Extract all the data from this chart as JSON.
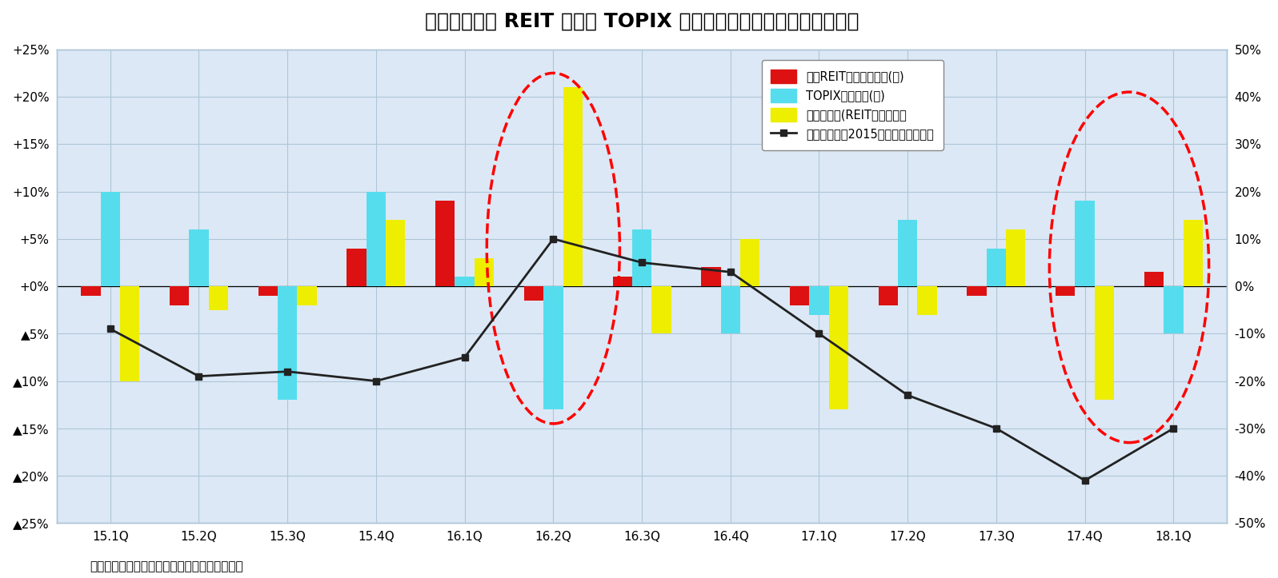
{
  "title": "図表１：東証 REIT 指数と TOPIX のリターン（四半期、配当除き）",
  "subtitle": "（資料）東京証券取引所のデータをもとに作成",
  "categories": [
    "15.1Q",
    "15.2Q",
    "15.3Q",
    "15.4Q",
    "16.1Q",
    "16.2Q",
    "16.3Q",
    "16.4Q",
    "17.1Q",
    "17.2Q",
    "17.3Q",
    "17.4Q",
    "18.1Q"
  ],
  "reit_returns": [
    -1.0,
    -2.0,
    -1.0,
    4.0,
    9.0,
    -1.5,
    1.0,
    2.0,
    -2.0,
    -2.0,
    -1.0,
    -1.0,
    1.5
  ],
  "topix_returns": [
    10.0,
    6.0,
    -12.0,
    10.0,
    1.0,
    -13.0,
    6.0,
    -5.0,
    -3.0,
    7.0,
    4.0,
    9.0,
    -5.0
  ],
  "diff_returns": [
    -10.0,
    -2.5,
    -2.0,
    7.0,
    3.0,
    21.0,
    -5.0,
    5.0,
    -13.0,
    -3.0,
    6.0,
    -12.0,
    7.0
  ],
  "cumulative": [
    -9.0,
    -19.0,
    -18.0,
    -20.0,
    -15.0,
    10.0,
    5.0,
    3.0,
    -10.0,
    -23.0,
    -30.0,
    -41.0,
    -30.0
  ],
  "reit_color": "#dd1111",
  "topix_color": "#55ddee",
  "diff_color": "#eeee00",
  "cum_color": "#222222",
  "left_ylim": [
    -25,
    25
  ],
  "right_ylim": [
    -50,
    50
  ],
  "left_yticks": [
    25,
    20,
    15,
    10,
    5,
    0,
    -5,
    -10,
    -15,
    -20,
    -25
  ],
  "right_yticks": [
    50,
    40,
    30,
    20,
    10,
    0,
    -10,
    -20,
    -30,
    -40,
    -50
  ],
  "legend_labels": [
    "東証REIT指数リターン(左)",
    "TOPIXリターン(左)",
    "リターン差(REIT－株式）左",
    "リターン差（2015年からの累計）右"
  ],
  "background_color": "#ffffff",
  "plot_bg_color": "#dce8f5",
  "grid_color": "#aec6d8",
  "bar_width": 0.22
}
